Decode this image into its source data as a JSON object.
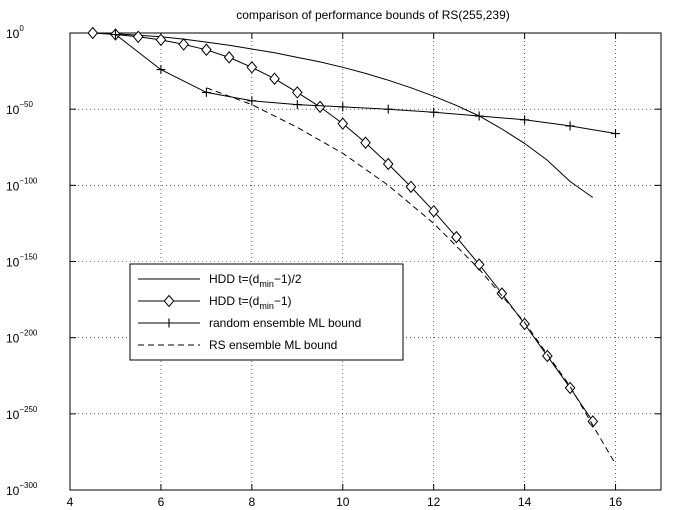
{
  "chart_data": {
    "type": "line",
    "title": "comparison of performance bounds of RS(255,239)",
    "xlabel": "",
    "ylabel": "",
    "xlim": [
      4,
      17
    ],
    "yscale": "log",
    "ylim_exponent": [
      -300,
      0
    ],
    "grid": true,
    "legend_placement": "center-left",
    "x_ticks": [
      "4",
      "6",
      "8",
      "10",
      "12",
      "14",
      "16"
    ],
    "y_ticks": [
      {
        "base": "10",
        "exp": "0",
        "value_exp": 0
      },
      {
        "base": "10",
        "exp": "−50",
        "value_exp": -50
      },
      {
        "base": "10",
        "exp": "−100",
        "value_exp": -100
      },
      {
        "base": "10",
        "exp": "−150",
        "value_exp": -150
      },
      {
        "base": "10",
        "exp": "−200",
        "value_exp": -200
      },
      {
        "base": "10",
        "exp": "−250",
        "value_exp": -250
      },
      {
        "base": "10",
        "exp": "−300",
        "value_exp": -300
      }
    ],
    "series": [
      {
        "name": "HDD t=(d_min−1)/2",
        "legend": {
          "pre": "HDD t=(d",
          "sub": "min",
          "post": "−1)/2"
        },
        "style": "solid",
        "marker": "none",
        "color": "#000000",
        "x": [
          4.5,
          5,
          5.5,
          6,
          6.5,
          7,
          7.5,
          8,
          8.5,
          9,
          9.5,
          10,
          10.5,
          11,
          11.5,
          12,
          12.5,
          13,
          13.5,
          14,
          14.5,
          15,
          15.5
        ],
        "log10_y": [
          0,
          -0.5,
          -1.5,
          -2.5,
          -4,
          -6,
          -8,
          -10.5,
          -13,
          -16,
          -19,
          -22.5,
          -26.5,
          -31,
          -36,
          -41.5,
          -47.5,
          -54.5,
          -63,
          -72.5,
          -83.5,
          -97.5,
          -108
        ]
      },
      {
        "name": "HDD t=(d_min−1)",
        "legend": {
          "pre": "HDD t=(d",
          "sub": "min",
          "post": "−1)"
        },
        "style": "solid",
        "marker": "diamond",
        "color": "#000000",
        "x": [
          4.5,
          5,
          5.5,
          6,
          6.5,
          7,
          7.5,
          8,
          8.5,
          9,
          9.5,
          10,
          10.5,
          11,
          11.5,
          12,
          12.5,
          13,
          13.5,
          14,
          14.5,
          15,
          15.5
        ],
        "log10_y": [
          0,
          -1,
          -2.5,
          -4.5,
          -7.5,
          -11,
          -16,
          -22.5,
          -30,
          -39,
          -48.5,
          -59.5,
          -72,
          -86,
          -101,
          -117,
          -134,
          -152,
          -171,
          -191,
          -212,
          -233,
          -255
        ]
      },
      {
        "name": "random ensemble ML bound",
        "legend": {
          "pre": "random ensemble ML bound",
          "sub": "",
          "post": ""
        },
        "style": "solid",
        "marker": "plus",
        "color": "#000000",
        "x": [
          5,
          6,
          7,
          8,
          9,
          10,
          11,
          12,
          13,
          14,
          15,
          16
        ],
        "log10_y": [
          -1,
          -24,
          -39,
          -44.5,
          -47,
          -48.5,
          -50,
          -52,
          -54.5,
          -57,
          -61,
          -66
        ]
      },
      {
        "name": "RS ensemble ML bound",
        "legend": {
          "pre": "RS ensemble ML bound",
          "sub": "",
          "post": ""
        },
        "style": "dashed",
        "marker": "none",
        "color": "#000000",
        "x": [
          7,
          8,
          9,
          10,
          11,
          12,
          13,
          14,
          15,
          16
        ],
        "log10_y": [
          -36,
          -47,
          -62,
          -79,
          -100,
          -125,
          -155,
          -190,
          -232,
          -283
        ]
      }
    ]
  }
}
